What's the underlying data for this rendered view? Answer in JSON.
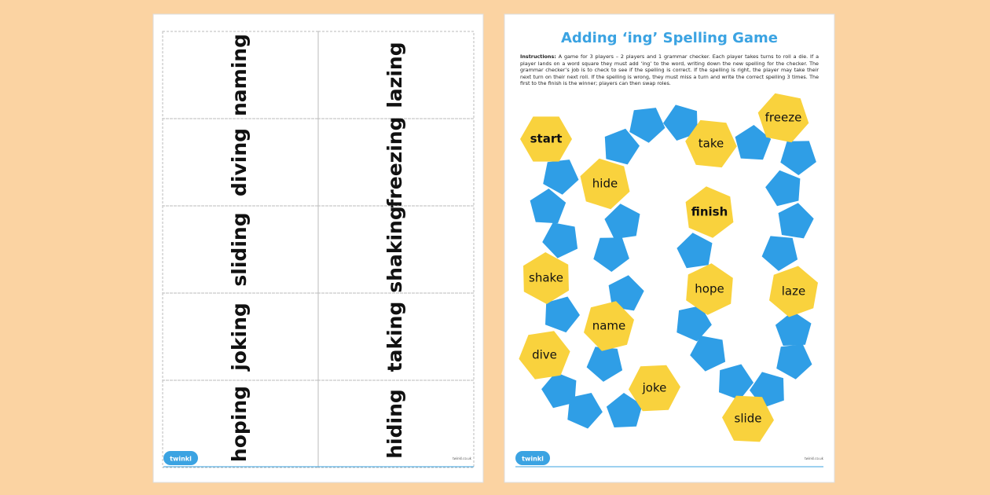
{
  "cards": {
    "left": [
      "naming",
      "diving",
      "sliding",
      "joking",
      "hoping"
    ],
    "right": [
      "lazing",
      "freezing",
      "shaking",
      "taking",
      "hiding"
    ]
  },
  "game": {
    "title": "Adding ‘ing’ Spelling Game",
    "instructions_label": "Instructions:",
    "instructions": "A game for 3 players – 2 players and 1 grammar checker. Each player takes turns to roll a die. If a player lands on a word square they must add ‘ing’ to the word, writing down the new spelling for the checker. The grammar checker’s job is to check to see if the spelling is correct. If the spelling is right, the player may take their next turn on their next roll. If the spelling is wrong, they must miss a turn and write the correct spelling 3 times. The first to the finish is the winner; players can then swap roles.",
    "tiles": [
      "start",
      "take",
      "freeze",
      "hide",
      "finish",
      "shake",
      "hope",
      "laze",
      "name",
      "dive",
      "joke",
      "slide"
    ]
  },
  "footer": {
    "logo": "twinkl",
    "url": "twinkl.co.uk"
  }
}
